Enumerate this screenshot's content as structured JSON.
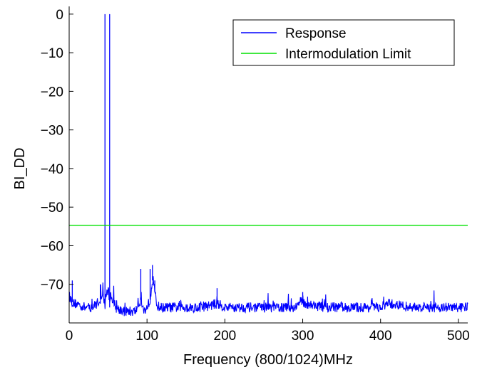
{
  "chart_data": {
    "type": "line",
    "xlabel": "Frequency (800/1024)MHz",
    "ylabel": "BI_DD",
    "xlim": [
      0,
      512
    ],
    "ylim": [
      -80,
      2
    ],
    "xticks": [
      0,
      100,
      200,
      300,
      400,
      500
    ],
    "yticks": [
      0,
      -10,
      -20,
      -30,
      -40,
      -50,
      -60,
      -70
    ],
    "grid": false,
    "legend_position": "top-right",
    "series": [
      {
        "name": "Response",
        "color": "#0000ff",
        "noise_floor": -76,
        "x": [
          0,
          5,
          10,
          20,
          30,
          40,
          44,
          46,
          47,
          48,
          49,
          50,
          51,
          52,
          53,
          54,
          56,
          60,
          70,
          85,
          92,
          96,
          100,
          104,
          106,
          108,
          110,
          112,
          116,
          130,
          150,
          170,
          190,
          200,
          230,
          260,
          290,
          300,
          302,
          330,
          360,
          400,
          410,
          440,
          470,
          500,
          512
        ],
        "y": [
          -73,
          -75,
          -75,
          -76,
          -76,
          -74,
          -73,
          0,
          -73,
          -72,
          -72,
          -72,
          -72,
          0,
          -72,
          -73,
          -74,
          -76,
          -77,
          -77,
          -74,
          -77,
          -76,
          -74,
          -70,
          -68,
          -72,
          -75,
          -76,
          -76,
          -76,
          -76,
          -75,
          -76,
          -76,
          -76,
          -76,
          -74,
          -75,
          -76,
          -76,
          -76,
          -75,
          -76,
          -76,
          -76,
          -76
        ]
      },
      {
        "name": "Intermodulation Limit",
        "color": "#00e000",
        "x": [
          0,
          512
        ],
        "y": [
          -54.7,
          -54.7
        ]
      }
    ],
    "spikes": [
      {
        "x": 46,
        "y": 0
      },
      {
        "x": 52,
        "y": 0
      },
      {
        "x": 92,
        "y": -66
      },
      {
        "x": 104,
        "y": -66
      },
      {
        "x": 107,
        "y": -65
      },
      {
        "x": 110,
        "y": -69
      },
      {
        "x": 4,
        "y": -69
      },
      {
        "x": 40,
        "y": -70
      },
      {
        "x": 190,
        "y": -71
      },
      {
        "x": 300,
        "y": -72
      }
    ]
  }
}
